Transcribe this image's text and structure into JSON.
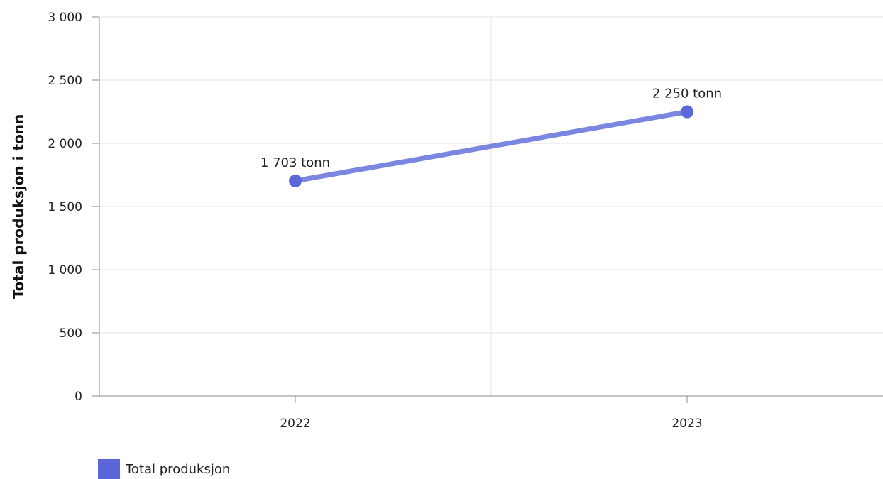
{
  "chart_data": {
    "type": "line",
    "categories": [
      "2022",
      "2023"
    ],
    "series": [
      {
        "name": "Total produksjon",
        "values": [
          1703,
          2250
        ],
        "data_labels": [
          "1 703 tonn",
          "2 250 tonn"
        ],
        "color": "#7b86e0",
        "marker_color": "#5b66d8"
      }
    ],
    "ylabel": "Total produksjon i tonn",
    "xlabel": "",
    "ylim": [
      0,
      3000
    ],
    "y_ticks": [
      0,
      500,
      1000,
      1500,
      2000,
      2500,
      3000
    ],
    "y_tick_labels": [
      "0",
      "500",
      "1 000",
      "1 500",
      "2 000",
      "2 500",
      "3 000"
    ],
    "grid": true,
    "legend_placement": "bottom-left"
  },
  "legend": {
    "label": "Total produksjon",
    "swatch_color": "#5b66d8"
  }
}
